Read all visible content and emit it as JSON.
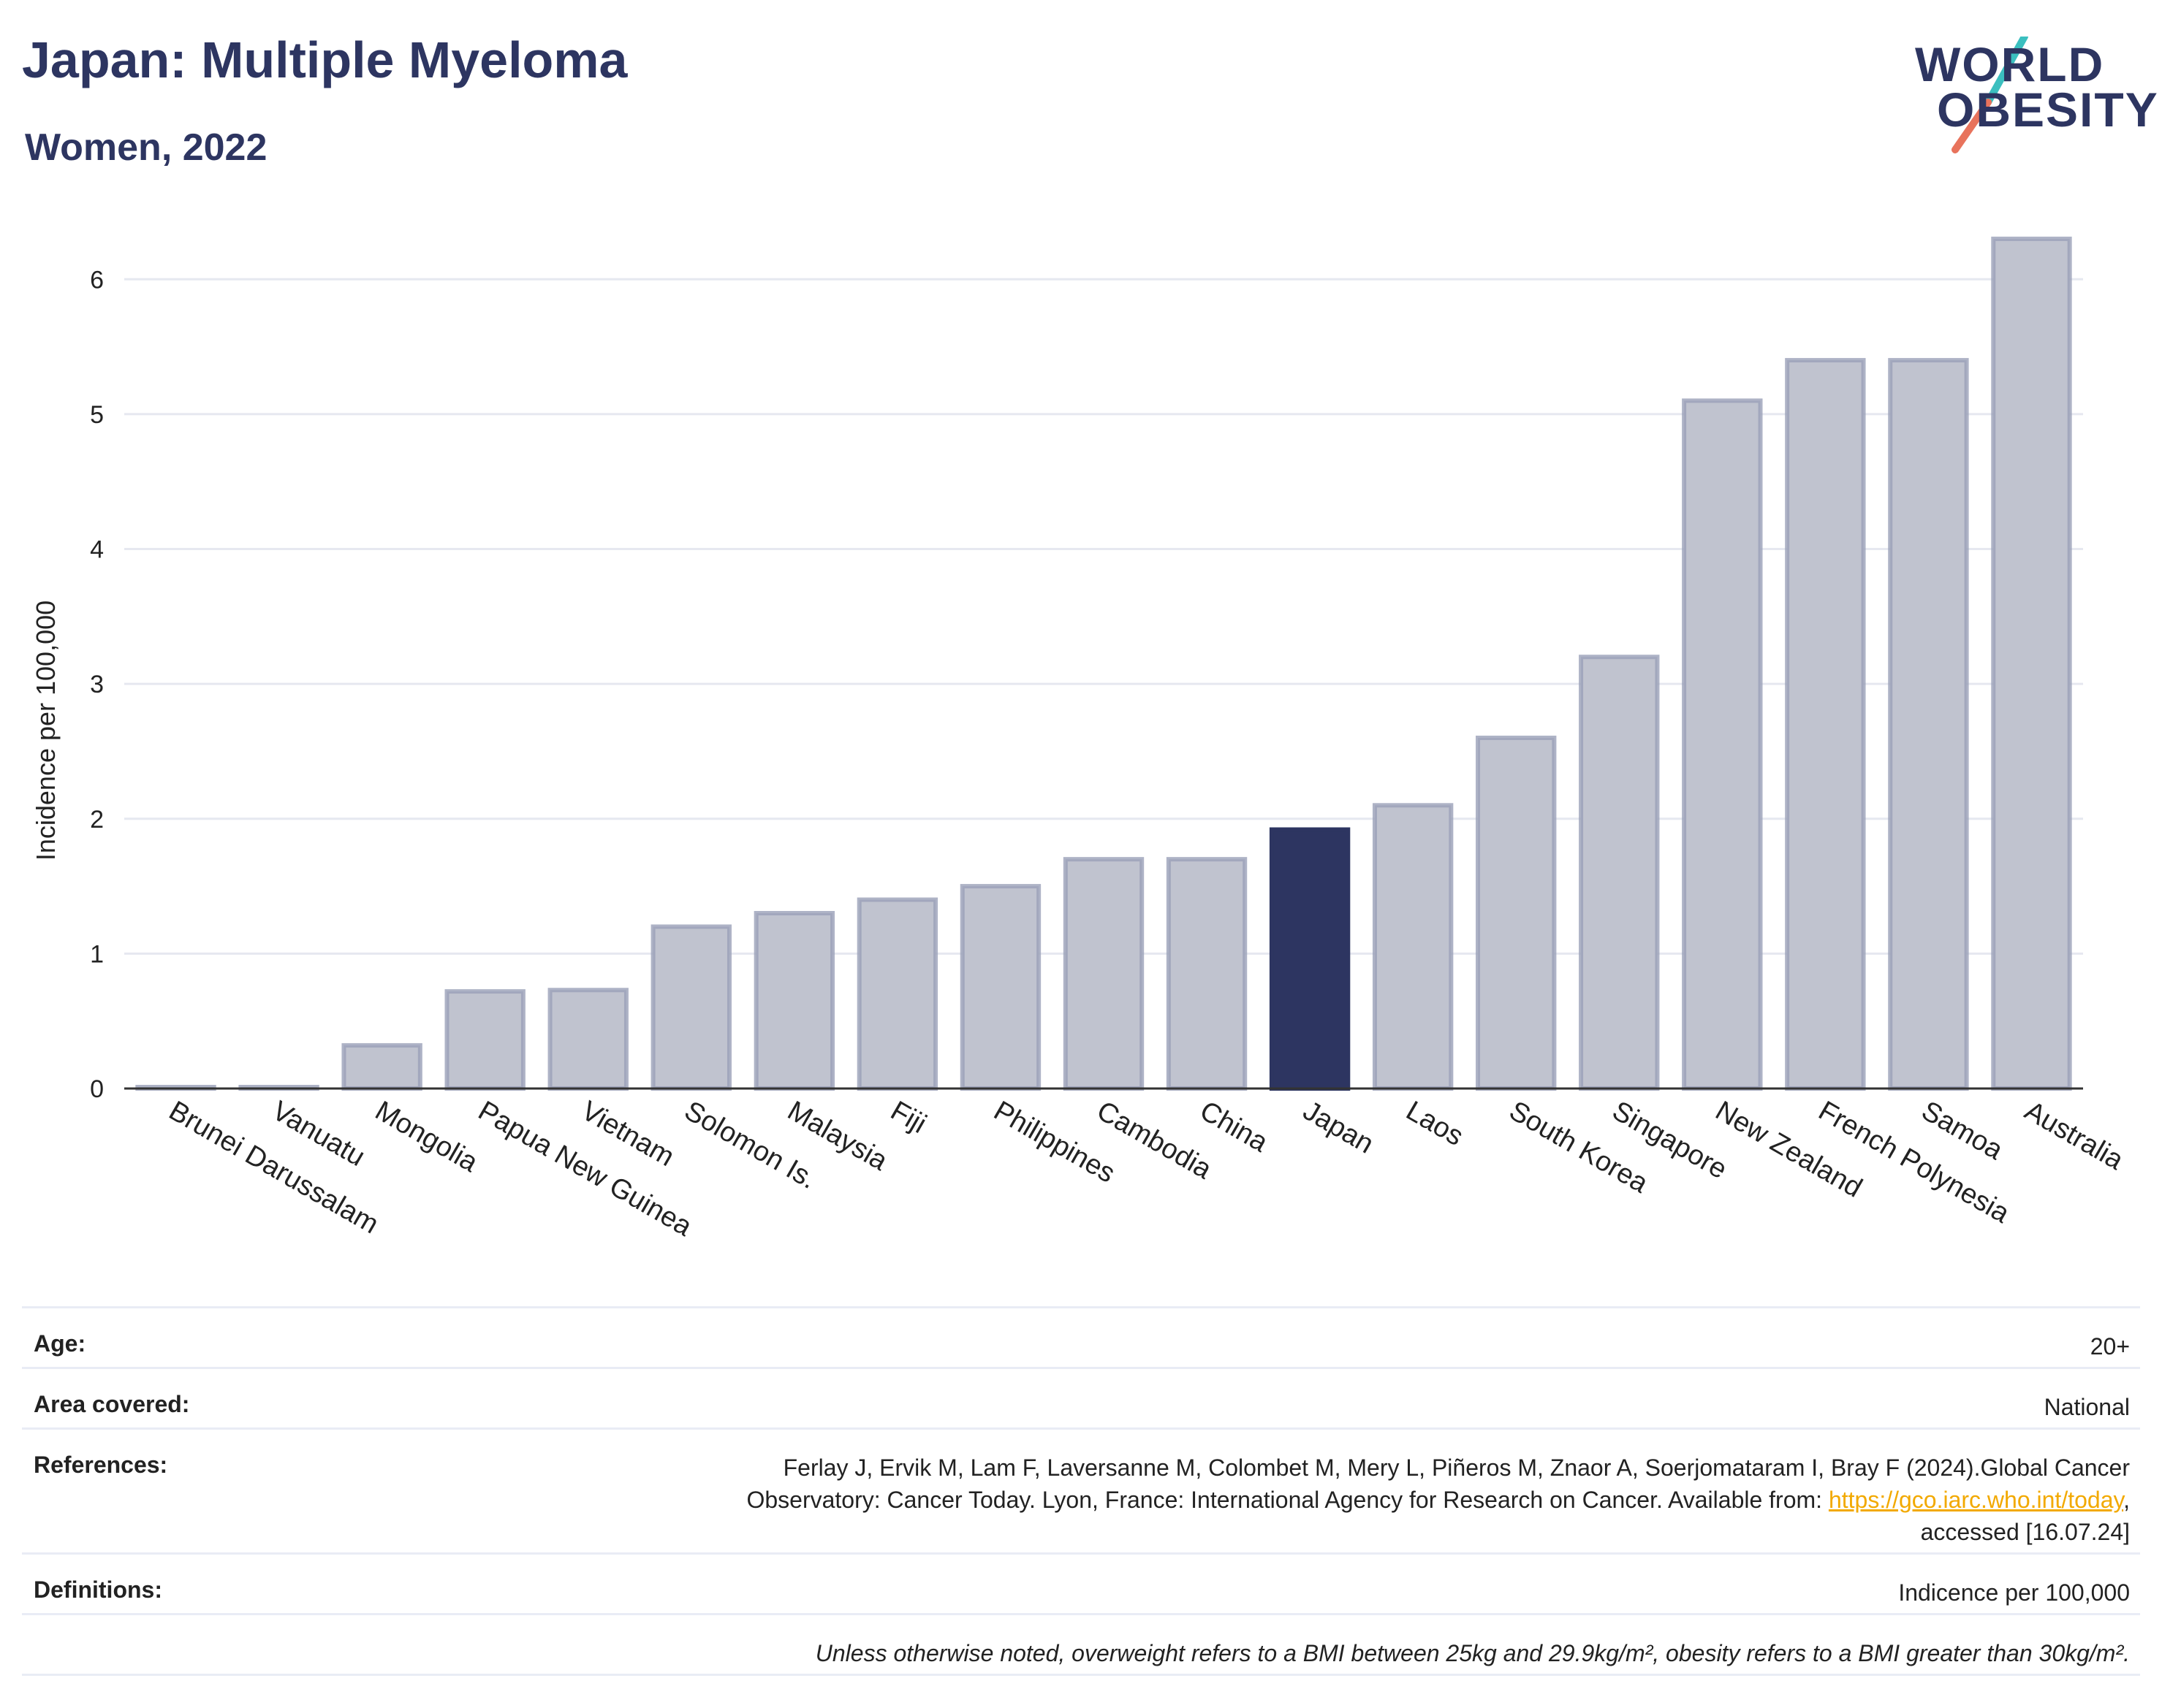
{
  "header": {
    "title": "Japan: Multiple Myeloma",
    "subtitle": "Women, 2022"
  },
  "logo": {
    "line1": "WORLD",
    "line2": "OBESITY"
  },
  "colors": {
    "highlight": "#2d3561",
    "bar": "#c0c3cf",
    "bar_stroke": "#9aa0b8",
    "accent_teal": "#3bbfbf",
    "accent_coral": "#e8735c"
  },
  "chart_data": {
    "type": "bar",
    "title": "Japan: Multiple Myeloma",
    "subtitle": "Women, 2022",
    "xlabel": "",
    "ylabel": "Incidence per 100,000",
    "ylim": [
      0,
      6.5
    ],
    "yticks": [
      0,
      1,
      2,
      3,
      4,
      5,
      6
    ],
    "grid": true,
    "highlight": "Japan",
    "categories": [
      "Brunei Darussalam",
      "Vanuatu",
      "Mongolia",
      "Papua New Guinea",
      "Vietnam",
      "Solomon Is.",
      "Malaysia",
      "Fiji",
      "Philippines",
      "Cambodia",
      "China",
      "Japan",
      "Laos",
      "South Korea",
      "Singapore",
      "New Zealand",
      "French Polynesia",
      "Samoa",
      "Australia"
    ],
    "values": [
      0.01,
      0.01,
      0.32,
      0.72,
      0.73,
      1.2,
      1.3,
      1.4,
      1.5,
      1.7,
      1.7,
      1.92,
      2.1,
      2.6,
      3.2,
      5.1,
      5.4,
      5.4,
      6.3
    ]
  },
  "info": {
    "age_label": "Age:",
    "age_value": "20+",
    "area_label": "Area covered:",
    "area_value": "National",
    "references_label": "References:",
    "references_line1": "Ferlay J, Ervik M, Lam F, Laversanne M, Colombet M, Mery L, Piñeros M, Znaor A, Soerjomataram I, Bray F (2024).Global Cancer",
    "references_line2": "Observatory: Cancer Today. Lyon, France: International Agency for Research on Cancer. Available from: ",
    "references_link": "https://gco.iarc.who.int/today",
    "references_line3": "accessed [16.07.24]",
    "definitions_label": "Definitions:",
    "definitions_value": "Indicence per 100,000",
    "note": "Unless otherwise noted, overweight refers to a BMI between 25kg and 29.9kg/m², obesity refers to a BMI greater than 30kg/m²."
  }
}
